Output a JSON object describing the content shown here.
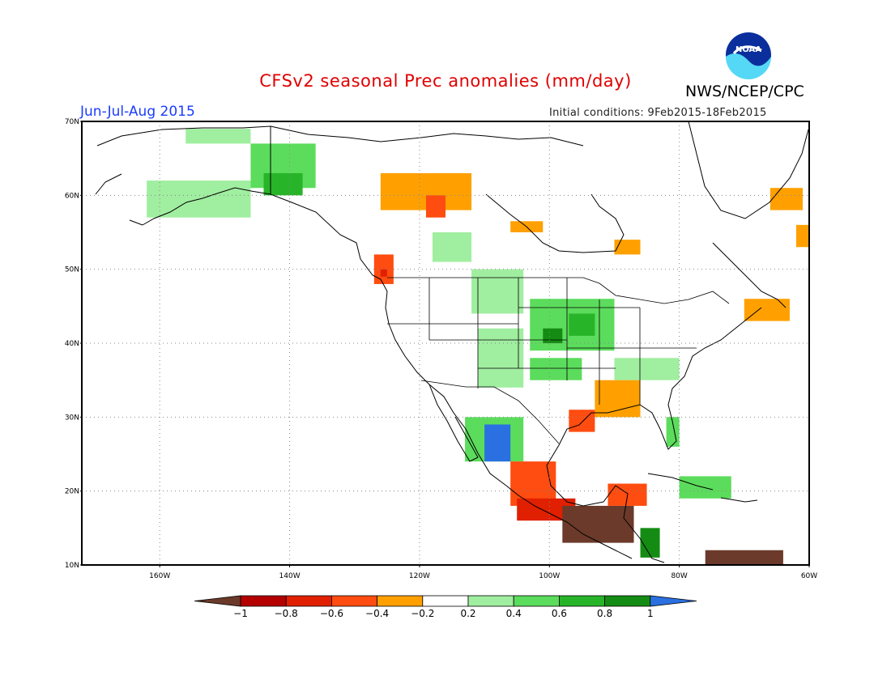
{
  "title": "CFSv2 seasonal Prec anomalies (mm/day)",
  "agency": "NWS/NCEP/CPC",
  "logo_text": "NOAA",
  "season": "Jun-Jul-Aug 2015",
  "initial_conditions": "Initial conditions: 9Feb2015-18Feb2015",
  "map": {
    "lon_range": [
      -172,
      -60
    ],
    "lat_range": [
      10,
      70
    ],
    "lat_ticks": [
      {
        "value": 70,
        "label": "70N"
      },
      {
        "value": 60,
        "label": "60N"
      },
      {
        "value": 50,
        "label": "50N"
      },
      {
        "value": 40,
        "label": "40N"
      },
      {
        "value": 30,
        "label": "30N"
      },
      {
        "value": 20,
        "label": "20N"
      },
      {
        "value": 10,
        "label": "10N"
      }
    ],
    "lon_ticks": [
      {
        "value": -160,
        "label": "160W"
      },
      {
        "value": -140,
        "label": "140W"
      },
      {
        "value": -120,
        "label": "120W"
      },
      {
        "value": -100,
        "label": "100W"
      },
      {
        "value": -80,
        "label": "80W"
      },
      {
        "value": -60,
        "label": "60W"
      }
    ],
    "grid": "dotted"
  },
  "colorbar": {
    "labels": [
      "-1",
      "-0.8",
      "-0.6",
      "-0.4",
      "-0.2",
      "0.2",
      "0.4",
      "0.6",
      "0.8",
      "1"
    ],
    "colors": [
      "#6b3a2a",
      "#b50000",
      "#e02000",
      "#ff4c10",
      "#ffa000",
      "#ffffff",
      "#a0eea0",
      "#5cdc5c",
      "#28b428",
      "#148c14",
      "#2a70e0"
    ]
  },
  "anomaly_regions": [
    {
      "lon0": -162,
      "lon1": -146,
      "lat0": 57,
      "lat1": 62,
      "value": 0.3
    },
    {
      "lon0": -146,
      "lon1": -136,
      "lat0": 61,
      "lat1": 67,
      "value": 0.4
    },
    {
      "lon0": -144,
      "lon1": -138,
      "lat0": 60,
      "lat1": 63,
      "value": 0.7
    },
    {
      "lon0": -156,
      "lon1": -146,
      "lat0": 67,
      "lat1": 69,
      "value": 0.3
    },
    {
      "lon0": -126,
      "lon1": -112,
      "lat0": 58,
      "lat1": 63,
      "value": -0.3
    },
    {
      "lon0": -119,
      "lon1": -116,
      "lat0": 57,
      "lat1": 60,
      "value": -0.5
    },
    {
      "lon0": -106,
      "lon1": -101,
      "lat0": 55,
      "lat1": 56.5,
      "value": -0.3
    },
    {
      "lon0": -90,
      "lon1": -86,
      "lat0": 52,
      "lat1": 54,
      "value": -0.3
    },
    {
      "lon0": -66,
      "lon1": -61,
      "lat0": 58,
      "lat1": 61,
      "value": -0.3
    },
    {
      "lon0": -62,
      "lon1": -60,
      "lat0": 53,
      "lat1": 56,
      "value": -0.3
    },
    {
      "lon0": -127,
      "lon1": -124,
      "lat0": 48,
      "lat1": 52,
      "value": -0.5
    },
    {
      "lon0": -126,
      "lon1": -125,
      "lat0": 49,
      "lat1": 50,
      "value": -0.7
    },
    {
      "lon0": -118,
      "lon1": -112,
      "lat0": 51,
      "lat1": 55,
      "value": 0.3
    },
    {
      "lon0": -112,
      "lon1": -104,
      "lat0": 44,
      "lat1": 50,
      "value": 0.3
    },
    {
      "lon0": -111,
      "lon1": -104,
      "lat0": 34,
      "lat1": 42,
      "value": 0.3
    },
    {
      "lon0": -103,
      "lon1": -90,
      "lat0": 39,
      "lat1": 46,
      "value": 0.5
    },
    {
      "lon0": -101,
      "lon1": -98,
      "lat0": 40,
      "lat1": 42,
      "value": 0.9
    },
    {
      "lon0": -97,
      "lon1": -93,
      "lat0": 41,
      "lat1": 44,
      "value": 0.7
    },
    {
      "lon0": -103,
      "lon1": -95,
      "lat0": 35,
      "lat1": 38,
      "value": 0.5
    },
    {
      "lon0": -113,
      "lon1": -104,
      "lat0": 24,
      "lat1": 30,
      "value": 0.5
    },
    {
      "lon0": -110,
      "lon1": -106,
      "lat0": 24,
      "lat1": 29,
      "value": 1.0
    },
    {
      "lon0": -90,
      "lon1": -80,
      "lat0": 35,
      "lat1": 38,
      "value": 0.3
    },
    {
      "lon0": -82,
      "lon1": -80,
      "lat0": 26,
      "lat1": 30,
      "value": 0.4
    },
    {
      "lon0": -80,
      "lon1": -72,
      "lat0": 19,
      "lat1": 22,
      "value": 0.4
    },
    {
      "lon0": -93,
      "lon1": -86,
      "lat0": 30,
      "lat1": 35,
      "value": -0.3
    },
    {
      "lon0": -97,
      "lon1": -93,
      "lat0": 28,
      "lat1": 31,
      "value": -0.5
    },
    {
      "lon0": -70,
      "lon1": -63,
      "lat0": 43,
      "lat1": 46,
      "value": -0.3
    },
    {
      "lon0": -106,
      "lon1": -99,
      "lat0": 18,
      "lat1": 24,
      "value": -0.5
    },
    {
      "lon0": -105,
      "lon1": -96,
      "lat0": 16,
      "lat1": 19,
      "value": -0.8
    },
    {
      "lon0": -98,
      "lon1": -87,
      "lat0": 13,
      "lat1": 18,
      "value": -1.0
    },
    {
      "lon0": -91,
      "lon1": -85,
      "lat0": 18,
      "lat1": 21,
      "value": -0.5
    },
    {
      "lon0": -86,
      "lon1": -83,
      "lat0": 11,
      "lat1": 15,
      "value": 0.9
    },
    {
      "lon0": -76,
      "lon1": -64,
      "lat0": 10,
      "lat1": 12,
      "value": -1.0
    }
  ]
}
